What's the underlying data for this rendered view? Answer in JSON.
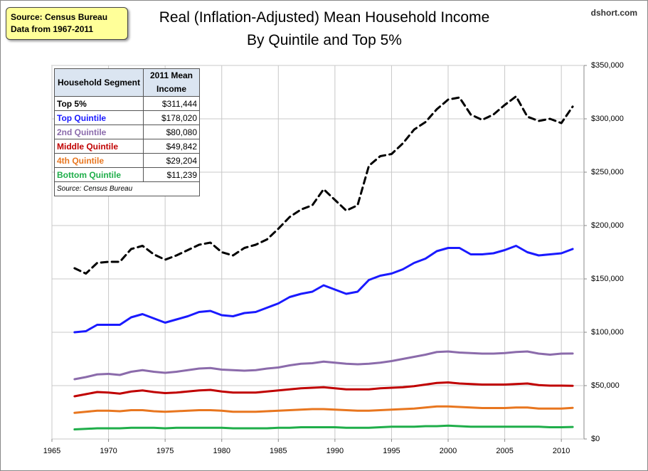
{
  "chart_data": {
    "type": "line",
    "title": "Real (Inflation-Adjusted) Mean Household Income",
    "subtitle": "By Quintile and Top 5%",
    "source_box": [
      "Source: Census Bureau",
      "Data from 1967-2011"
    ],
    "site": "dshort.com",
    "x": [
      1967,
      1968,
      1969,
      1970,
      1971,
      1972,
      1973,
      1974,
      1975,
      1976,
      1977,
      1978,
      1979,
      1980,
      1981,
      1982,
      1983,
      1984,
      1985,
      1986,
      1987,
      1988,
      1989,
      1990,
      1991,
      1992,
      1993,
      1994,
      1995,
      1996,
      1997,
      1998,
      1999,
      2000,
      2001,
      2002,
      2003,
      2004,
      2005,
      2006,
      2007,
      2008,
      2009,
      2010,
      2011
    ],
    "series": [
      {
        "name": "Top 5%",
        "color": "#000000",
        "dashed": true,
        "values": [
          160000,
          155000,
          165000,
          166000,
          166000,
          178000,
          181000,
          173000,
          168000,
          172000,
          177000,
          182000,
          184000,
          175000,
          172000,
          179000,
          182000,
          187000,
          197000,
          208000,
          215000,
          219000,
          234000,
          224000,
          214000,
          219000,
          256000,
          265000,
          267000,
          277000,
          290000,
          297000,
          309000,
          318000,
          320000,
          304000,
          299000,
          304000,
          313000,
          321000,
          302000,
          298000,
          300000,
          296000,
          311444
        ]
      },
      {
        "name": "Top Quintile",
        "color": "#1a1aff",
        "dashed": false,
        "values": [
          100000,
          101000,
          107000,
          107000,
          107000,
          114000,
          117000,
          113000,
          109000,
          112000,
          115000,
          119000,
          120000,
          116000,
          115000,
          118000,
          119000,
          123000,
          127000,
          133000,
          136000,
          138000,
          144000,
          140000,
          136000,
          138000,
          149000,
          153000,
          155000,
          159000,
          165000,
          169000,
          176000,
          179000,
          179000,
          173000,
          173000,
          174000,
          177000,
          181000,
          175000,
          172000,
          173000,
          174000,
          178020
        ]
      },
      {
        "name": "2nd Quintile",
        "color": "#8b6bab",
        "dashed": false,
        "values": [
          56000,
          58000,
          60500,
          61000,
          60000,
          63000,
          64500,
          63000,
          62000,
          63000,
          64500,
          66000,
          66500,
          65000,
          64500,
          64000,
          64500,
          66000,
          67000,
          69000,
          70500,
          71000,
          72500,
          71500,
          70500,
          70000,
          70500,
          71500,
          73000,
          75000,
          77000,
          79000,
          81500,
          82000,
          81000,
          80500,
          80000,
          80000,
          80500,
          81500,
          82000,
          80000,
          79000,
          80000,
          80080
        ]
      },
      {
        "name": "Middle Quintile",
        "color": "#c00000",
        "dashed": false,
        "values": [
          40000,
          42000,
          44000,
          43500,
          42500,
          44500,
          45500,
          44000,
          43000,
          43500,
          44500,
          45500,
          46000,
          44500,
          43500,
          43500,
          43500,
          44500,
          45500,
          46500,
          47500,
          48000,
          48500,
          47500,
          46500,
          46500,
          46500,
          47500,
          48000,
          48500,
          49500,
          51000,
          52500,
          53000,
          52000,
          51500,
          51000,
          51000,
          51000,
          51500,
          52000,
          50500,
          50000,
          50000,
          49842
        ]
      },
      {
        "name": "4th Quintile",
        "color": "#e8761f",
        "dashed": false,
        "values": [
          24500,
          25500,
          26500,
          26500,
          26000,
          27000,
          27000,
          26000,
          25500,
          26000,
          26500,
          27000,
          27000,
          26500,
          25500,
          25500,
          25500,
          26000,
          26500,
          27000,
          27500,
          28000,
          28000,
          27500,
          27000,
          26500,
          26500,
          27000,
          27500,
          28000,
          28500,
          29500,
          30500,
          30500,
          30000,
          29500,
          29000,
          29000,
          29000,
          29500,
          29500,
          28500,
          28500,
          28500,
          29204
        ]
      },
      {
        "name": "Bottom Quintile",
        "color": "#1fae4a",
        "dashed": false,
        "values": [
          9000,
          9500,
          10000,
          10000,
          10000,
          10500,
          10500,
          10500,
          10000,
          10500,
          10500,
          10500,
          10500,
          10500,
          10000,
          10000,
          10000,
          10000,
          10500,
          10500,
          11000,
          11000,
          11000,
          11000,
          10500,
          10500,
          10500,
          11000,
          11500,
          11500,
          11500,
          12000,
          12000,
          12500,
          12000,
          11500,
          11500,
          11500,
          11500,
          11500,
          11500,
          11500,
          11000,
          11000,
          11239
        ]
      }
    ],
    "xlim": [
      1965,
      2012
    ],
    "xticks": [
      1965,
      1970,
      1975,
      1980,
      1985,
      1990,
      1995,
      2000,
      2005,
      2010
    ],
    "ylim": [
      0,
      350000
    ],
    "yticks": [
      {
        "value": 0,
        "label": "$0"
      },
      {
        "value": 50000,
        "label": "$50,000"
      },
      {
        "value": 100000,
        "label": "$100,000"
      },
      {
        "value": 150000,
        "label": "$150,000"
      },
      {
        "value": 200000,
        "label": "$200,000"
      },
      {
        "value": 250000,
        "label": "$250,000"
      },
      {
        "value": 300000,
        "label": "$300,000"
      },
      {
        "value": 350000,
        "label": "$350,000"
      }
    ],
    "grid": true,
    "table": {
      "header": [
        "Household Segment",
        "2011 Mean Income"
      ],
      "income": [
        "$311,444",
        "$178,020",
        "$80,080",
        "$49,842",
        "$29,204",
        "$11,239"
      ],
      "note": "Source: Census Bureau"
    }
  }
}
